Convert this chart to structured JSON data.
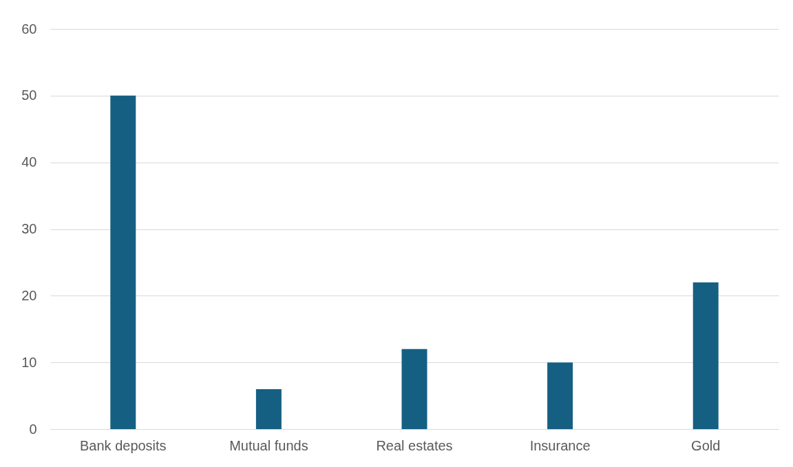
{
  "chart_data": {
    "type": "bar",
    "categories": [
      "Bank deposits",
      "Mutual funds",
      "Real estates",
      "Insurance",
      "Gold"
    ],
    "values": [
      50,
      6,
      12,
      10,
      22
    ],
    "color": "#156082",
    "ylim": [
      0,
      60
    ],
    "yticks": [
      0,
      10,
      20,
      30,
      40,
      50,
      60
    ],
    "grid": "y"
  }
}
